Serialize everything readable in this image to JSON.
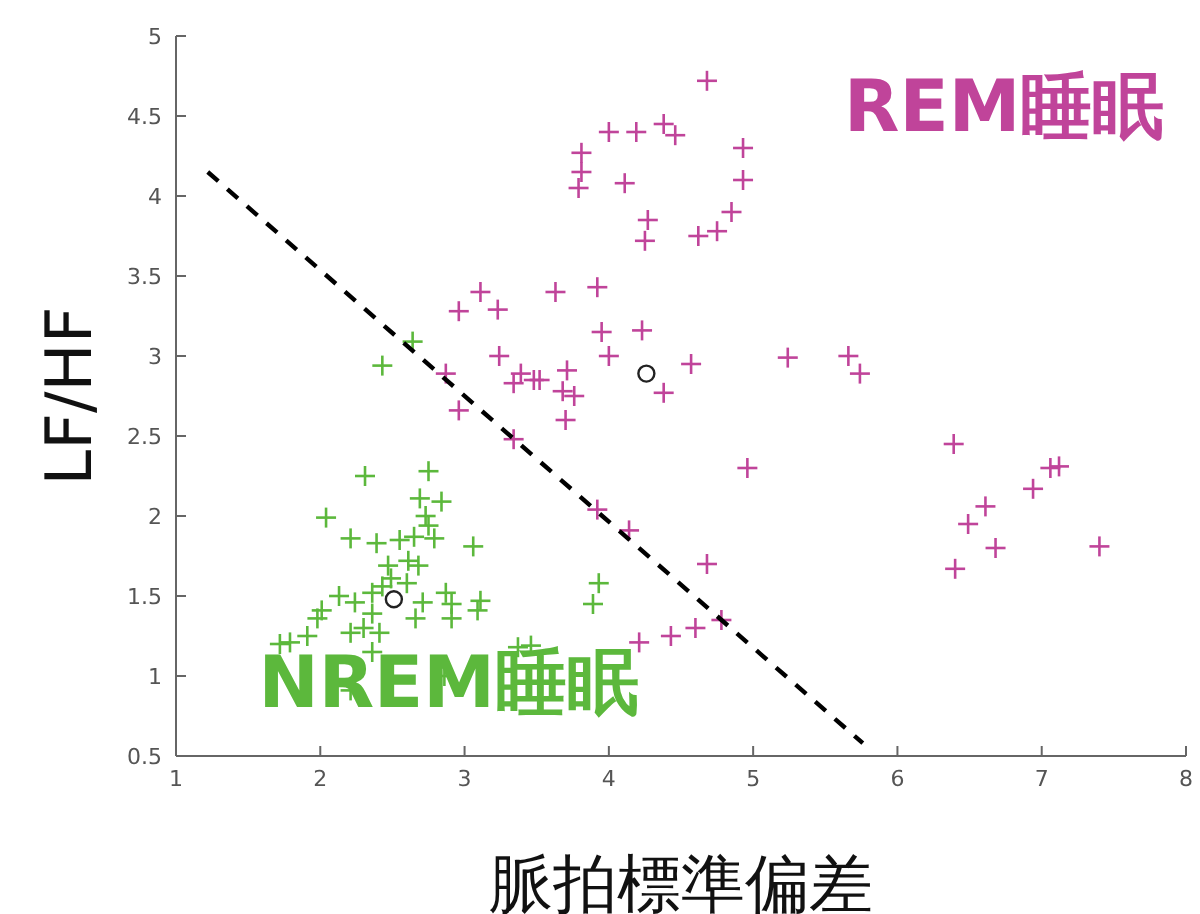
{
  "chart_data": {
    "type": "scatter",
    "xlabel": "脈拍標準偏差",
    "ylabel": "LF/HF",
    "xlim": [
      1,
      8
    ],
    "ylim": [
      0.5,
      5
    ],
    "xticks": [
      1,
      2,
      3,
      4,
      5,
      6,
      7,
      8
    ],
    "yticks": [
      0.5,
      1,
      1.5,
      2,
      2.5,
      3,
      3.5,
      4,
      4.5,
      5
    ],
    "series": [
      {
        "name": "REM睡眠",
        "color": "#c0449a",
        "marker": "cross",
        "x": [
          4.68,
          4.0,
          4.19,
          4.38,
          4.46,
          3.81,
          3.81,
          3.79,
          4.11,
          4.27,
          4.25,
          4.93,
          4.93,
          4.85,
          4.75,
          4.62,
          3.11,
          2.96,
          3.23,
          3.63,
          3.92,
          3.95,
          4.0,
          4.23,
          3.24,
          3.39,
          3.48,
          3.52,
          3.34,
          3.71,
          3.68,
          3.76,
          3.7,
          2.96,
          2.87,
          3.34,
          4.57,
          4.38,
          5.24,
          5.66,
          5.74,
          4.96,
          3.92,
          4.14,
          4.68,
          4.21,
          4.43,
          4.6,
          4.78,
          6.39,
          6.49,
          6.61,
          6.68,
          6.94,
          7.06,
          7.12,
          7.4,
          6.4
        ],
        "values": [
          4.72,
          4.4,
          4.4,
          4.45,
          4.38,
          4.27,
          4.15,
          4.05,
          4.08,
          3.85,
          3.72,
          4.3,
          4.1,
          3.9,
          3.78,
          3.75,
          3.4,
          3.28,
          3.29,
          3.4,
          3.43,
          3.15,
          3.0,
          3.16,
          3.0,
          2.89,
          2.85,
          2.85,
          2.83,
          2.91,
          2.78,
          2.75,
          2.6,
          2.66,
          2.89,
          2.48,
          2.95,
          2.77,
          2.99,
          3.0,
          2.89,
          2.3,
          2.04,
          1.91,
          1.7,
          1.21,
          1.25,
          1.3,
          1.35,
          2.45,
          1.95,
          2.06,
          1.8,
          2.17,
          2.3,
          2.31,
          1.81,
          1.67
        ]
      },
      {
        "name": "NREM睡眠",
        "color": "#5cb83c",
        "marker": "cross",
        "x": [
          2.64,
          2.43,
          2.31,
          2.75,
          2.69,
          2.84,
          2.73,
          2.04,
          2.75,
          2.21,
          2.39,
          2.55,
          2.65,
          2.79,
          3.06,
          2.61,
          2.68,
          2.47,
          2.49,
          2.43,
          2.6,
          2.36,
          2.13,
          2.24,
          2.71,
          2.87,
          2.91,
          3.11,
          3.09,
          2.01,
          1.98,
          1.91,
          1.79,
          1.72,
          2.21,
          2.3,
          2.36,
          2.41,
          2.36,
          2.66,
          2.91,
          3.37,
          3.46,
          3.93,
          3.89,
          2.86,
          2.21
        ],
        "values": [
          3.09,
          2.94,
          2.25,
          2.28,
          2.11,
          2.09,
          2.0,
          1.99,
          1.94,
          1.86,
          1.83,
          1.85,
          1.87,
          1.86,
          1.81,
          1.72,
          1.69,
          1.69,
          1.61,
          1.56,
          1.58,
          1.52,
          1.5,
          1.46,
          1.46,
          1.52,
          1.45,
          1.47,
          1.41,
          1.41,
          1.36,
          1.25,
          1.21,
          1.2,
          1.27,
          1.3,
          1.39,
          1.27,
          1.15,
          1.36,
          1.36,
          1.18,
          1.19,
          1.58,
          1.45,
          1.0,
          0.91
        ]
      },
      {
        "color": "#222222",
        "marker": "circle",
        "x": [
          4.26,
          2.51
        ],
        "values": [
          2.89,
          1.48
        ]
      },
      {
        "type": "line",
        "color": "#000000",
        "line_style": "dashed",
        "marker": "none",
        "x": [
          1.22,
          5.76
        ],
        "values": [
          4.15,
          0.58
        ]
      }
    ]
  }
}
